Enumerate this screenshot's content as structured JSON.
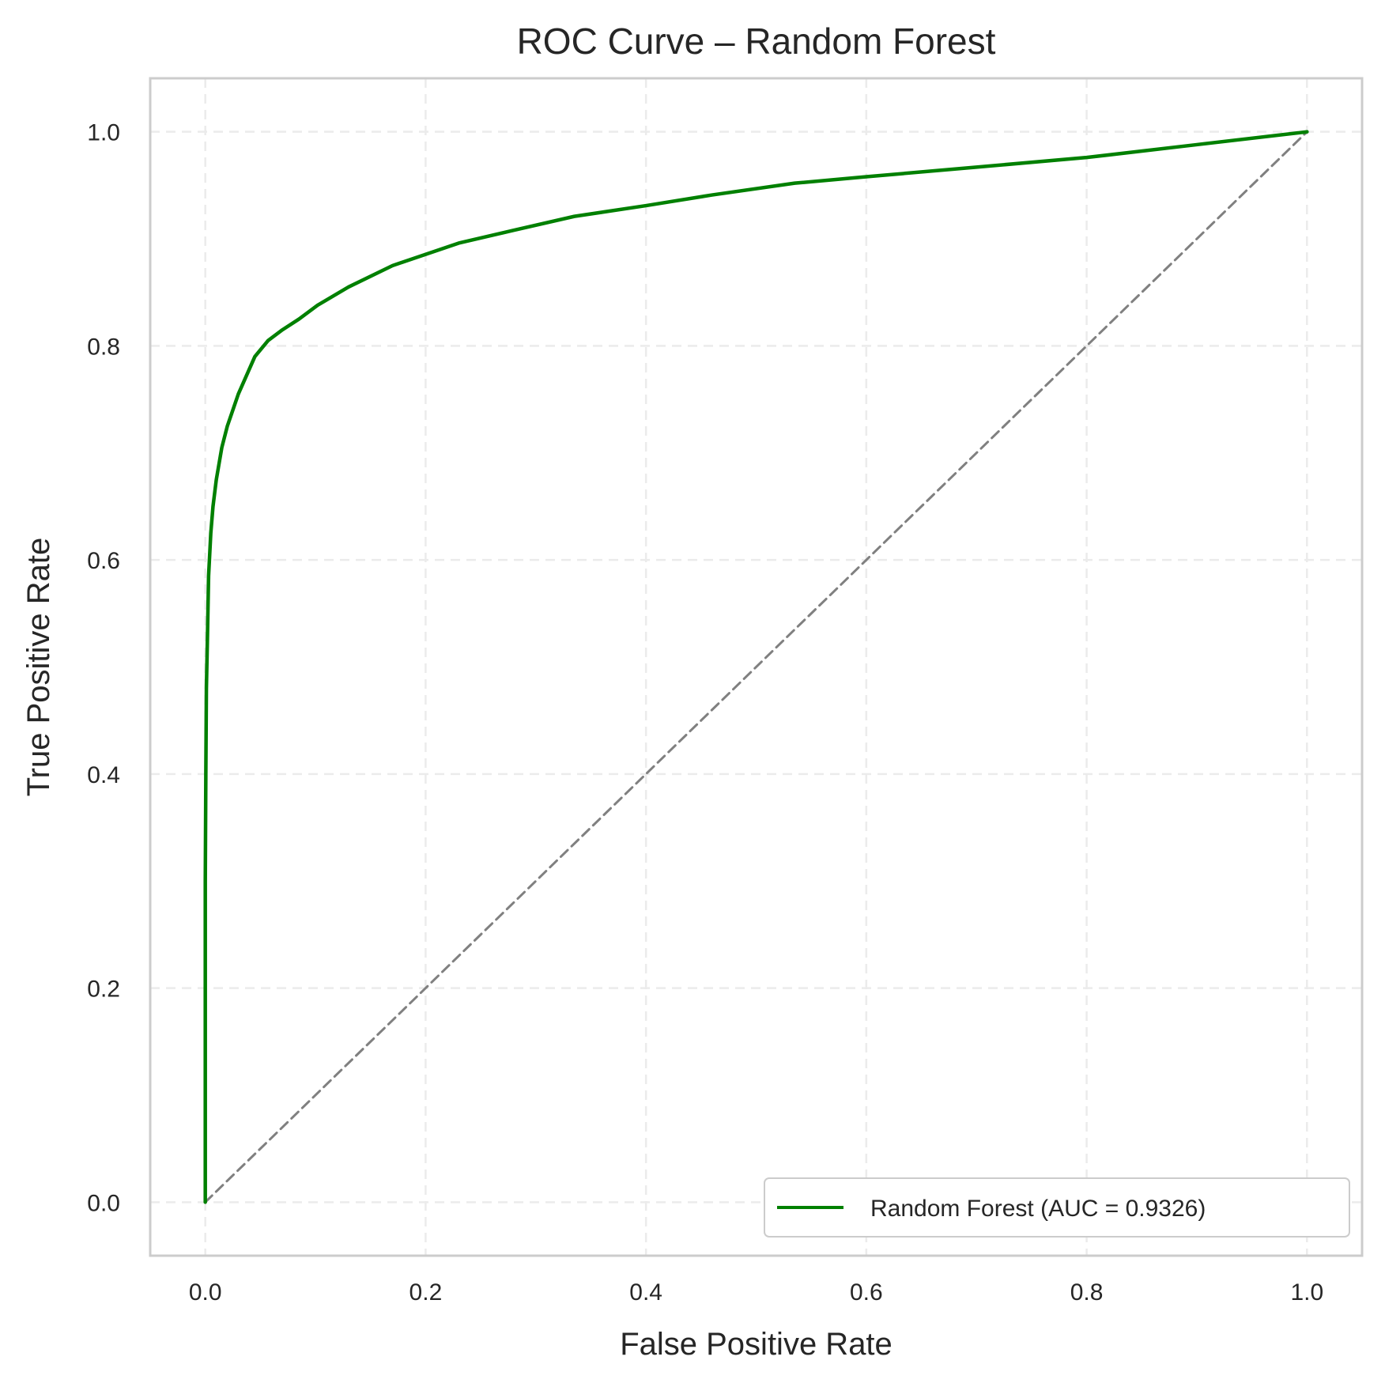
{
  "chart_data": {
    "type": "line",
    "title": "ROC Curve – Random Forest",
    "xlabel": "False Positive Rate",
    "ylabel": "True Positive Rate",
    "xlim": [
      -0.05,
      1.05
    ],
    "ylim": [
      -0.05,
      1.05
    ],
    "x_ticks": [
      0.0,
      0.2,
      0.4,
      0.6,
      0.8,
      1.0
    ],
    "y_ticks": [
      0.0,
      0.2,
      0.4,
      0.6,
      0.8,
      1.0
    ],
    "x_tick_labels": [
      "0.0",
      "0.2",
      "0.4",
      "0.6",
      "0.8",
      "1.0"
    ],
    "y_tick_labels": [
      "0.0",
      "0.2",
      "0.4",
      "0.6",
      "0.8",
      "1.0"
    ],
    "grid": true,
    "legend_position": "lower-right",
    "series": [
      {
        "name": "Random Forest (AUC = 0.9326)",
        "color": "#008000",
        "style": "solid",
        "x": [
          0.0,
          0.0,
          0.0005,
          0.001,
          0.002,
          0.003,
          0.005,
          0.007,
          0.01,
          0.015,
          0.02,
          0.03,
          0.045,
          0.057,
          0.07,
          0.085,
          0.102,
          0.13,
          0.17,
          0.23,
          0.28,
          0.335,
          0.4,
          0.46,
          0.535,
          0.6,
          0.7,
          0.8,
          0.9,
          1.0
        ],
        "y": [
          0.0,
          0.3,
          0.4,
          0.48,
          0.53,
          0.585,
          0.625,
          0.65,
          0.675,
          0.705,
          0.725,
          0.755,
          0.79,
          0.805,
          0.815,
          0.825,
          0.838,
          0.855,
          0.875,
          0.896,
          0.908,
          0.921,
          0.931,
          0.941,
          0.952,
          0.958,
          0.967,
          0.976,
          0.988,
          1.0
        ]
      },
      {
        "name": "",
        "color": "#808080",
        "style": "dashed",
        "x": [
          0.0,
          1.0
        ],
        "y": [
          0.0,
          1.0
        ]
      }
    ]
  }
}
